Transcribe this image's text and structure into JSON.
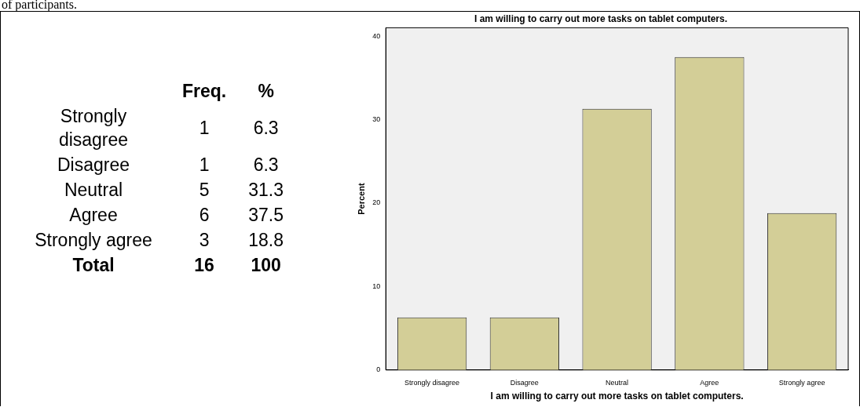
{
  "chart_data": [
    {
      "type": "other",
      "data_labels": true,
      "annotations": [
        "of participants."
      ],
      "categories": [
        "Strongly disagree",
        "Disagree",
        "Neutral",
        "Agree",
        "Strongly agree",
        "Total"
      ],
      "series": [
        {
          "name": "Freq.",
          "values": [
            1,
            1,
            5,
            6,
            3,
            16
          ]
        },
        {
          "name": "%",
          "values": [
            6.3,
            6.3,
            31.3,
            37.5,
            18.8,
            100
          ]
        }
      ]
    },
    {
      "type": "bar",
      "title": "I am willing to carry out more tasks on tablet computers.",
      "xlabel": "I am willing to carry out more tasks on tablet computers.",
      "ylabel": "Percent",
      "categories": [
        "Strongly disagree",
        "Disagree",
        "Neutral",
        "Agree",
        "Strongly agree"
      ],
      "values": [
        6.3,
        6.3,
        31.3,
        37.5,
        18.8
      ],
      "color": "#d3ce97",
      "ylim": [
        0,
        41
      ],
      "yticks": [
        0,
        10,
        20,
        30,
        40
      ],
      "grid": false,
      "legend": false
    }
  ]
}
